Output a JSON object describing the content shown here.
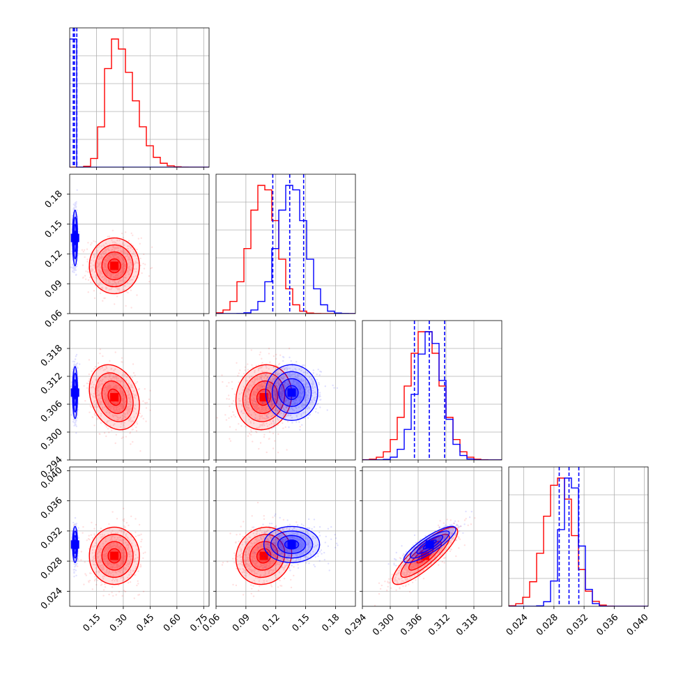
{
  "chart_data": {
    "type": "corner",
    "grid": true,
    "parameters": [
      "",
      "",
      "",
      ""
    ],
    "ranges": [
      [
        0.0,
        0.78
      ],
      [
        0.06,
        0.2
      ],
      [
        0.294,
        0.324
      ],
      [
        0.022,
        0.0405
      ]
    ],
    "ticks": [
      [
        "0.15",
        "0.30",
        "0.45",
        "0.60",
        "0.75"
      ],
      [
        "0.06",
        "0.09",
        "0.12",
        "0.15",
        "0.18"
      ],
      [
        "0.294",
        "0.300",
        "0.306",
        "0.312",
        "0.318"
      ],
      [
        "0.024",
        "0.028",
        "0.032",
        "0.036",
        "0.040"
      ]
    ],
    "series": [
      {
        "name": "",
        "color": "#ff0000",
        "means": [
          0.25,
          0.108,
          0.3075,
          0.0287
        ],
        "sigmas": [
          0.07,
          0.014,
          0.0035,
          0.0019
        ],
        "correlations": [
          [
            0,
            2,
            -0.25
          ],
          [
            1,
            2,
            0.1
          ],
          [
            1,
            3,
            0.1
          ],
          [
            2,
            3,
            0.85
          ]
        ],
        "quantile_lines": []
      },
      {
        "name": "",
        "color": "#0000ff",
        "means": [
          0.03,
          0.136,
          0.3085,
          0.0302
        ],
        "sigmas": [
          0.007,
          0.014,
          0.0028,
          0.0012
        ],
        "correlations": [
          [
            2,
            3,
            0.85
          ]
        ],
        "quantile_lines": [
          [
            0.02,
            0.027,
            0.04
          ],
          [
            0.117,
            0.134,
            0.148
          ],
          [
            0.3052,
            0.3084,
            0.3117
          ],
          [
            0.0287,
            0.03,
            0.0313
          ]
        ]
      }
    ]
  }
}
